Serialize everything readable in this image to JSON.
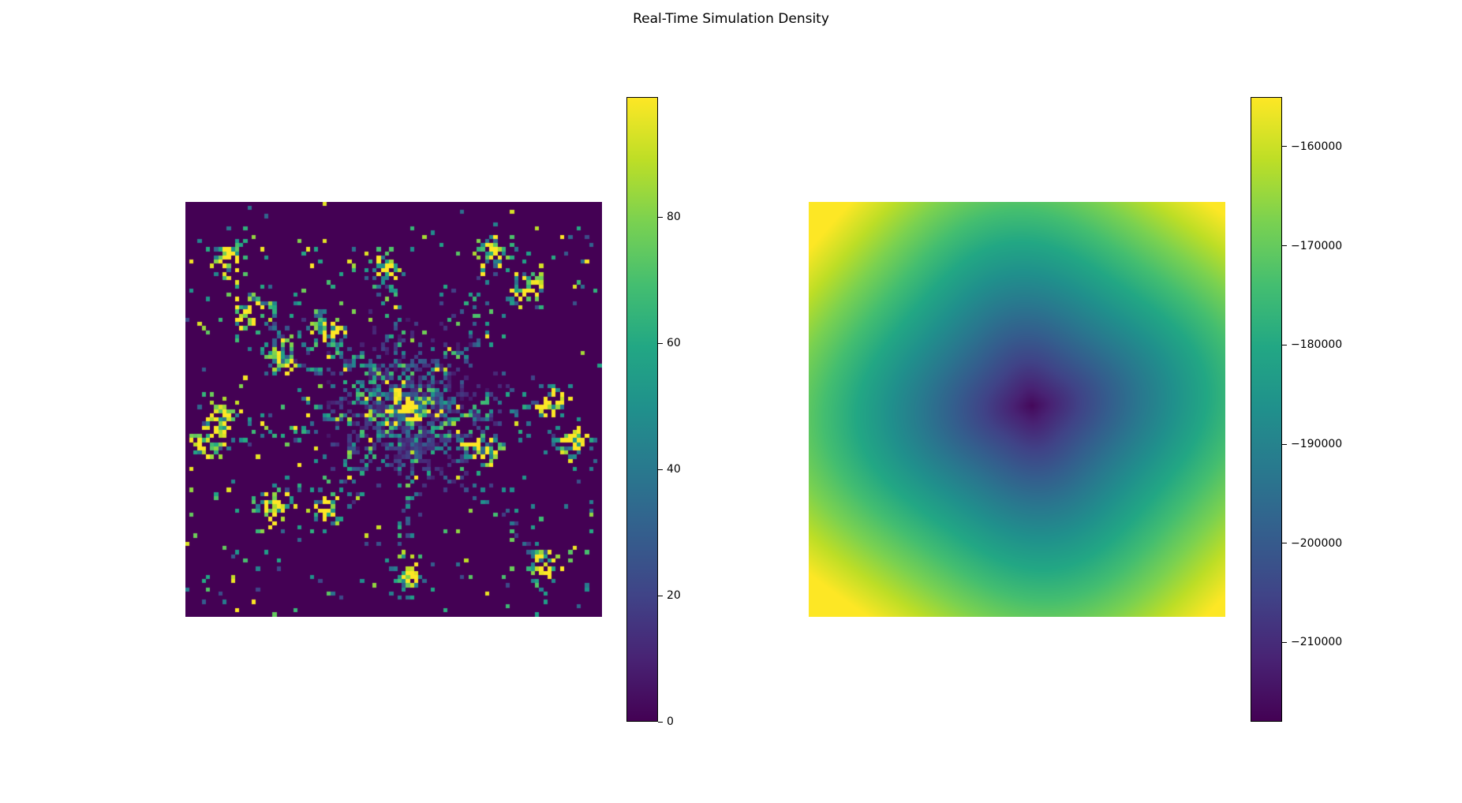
{
  "figure": {
    "title": "Real-Time Simulation Density"
  },
  "chart_data": [
    {
      "type": "heatmap",
      "name": "density",
      "colormap": "viridis",
      "grid_size": [
        100,
        100
      ],
      "vmin": 0,
      "vmax": 99,
      "axes_visible": false,
      "description_of_pattern": "sparse particles clustered along filaments radiating from the center; most cells 0",
      "colorbar": {
        "ticks": [
          0,
          20,
          40,
          60,
          80
        ],
        "tick_labels": [
          "0",
          "20",
          "40",
          "60",
          "80"
        ]
      }
    },
    {
      "type": "heatmap",
      "name": "potential",
      "colormap": "viridis",
      "vmin": -218000,
      "vmax": -155000,
      "axes_visible": false,
      "description_of_pattern": "smooth potential well, minimum at center, highest at corners",
      "colorbar": {
        "ticks": [
          -210000,
          -200000,
          -190000,
          -180000,
          -170000,
          -160000
        ],
        "tick_labels": [
          "−210000",
          "−200000",
          "−190000",
          "−180000",
          "−170000",
          "−160000"
        ]
      }
    }
  ]
}
